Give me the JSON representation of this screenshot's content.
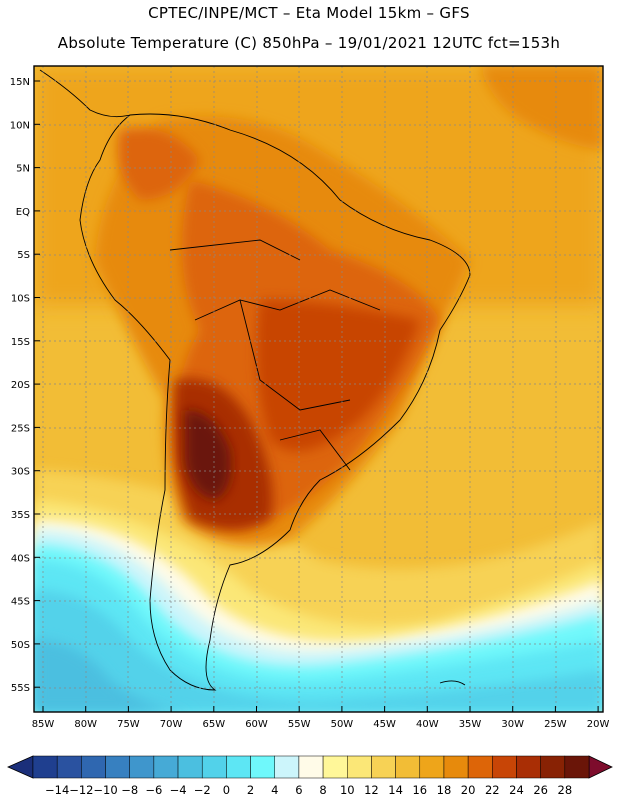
{
  "header": {
    "title_line1": "CPTEC/INPE/MCT –  Eta Model 15km – GFS",
    "title_line2": "Absolute Temperature (C) 850hPa – 19/01/2021 12UTC fct=153h"
  },
  "map": {
    "lat_labels": [
      "15N",
      "10N",
      "5N",
      "EQ",
      "5S",
      "10S",
      "15S",
      "20S",
      "25S",
      "30S",
      "35S",
      "40S",
      "45S",
      "50S",
      "55S"
    ],
    "lon_labels": [
      "85W",
      "80W",
      "75W",
      "70W",
      "65W",
      "60W",
      "55W",
      "50W",
      "45W",
      "40W",
      "35W",
      "30W",
      "25W",
      "20W"
    ]
  },
  "colorbar": {
    "labels": [
      "-14",
      "-12",
      "-10",
      "-8",
      "-6",
      "-4",
      "-2",
      "0",
      "2",
      "4",
      "6",
      "8",
      "10",
      "12",
      "14",
      "16",
      "18",
      "20",
      "22",
      "24",
      "26",
      "28"
    ],
    "colors": [
      "#1f3f8f",
      "#2a52a0",
      "#2f67b0",
      "#3780c0",
      "#3f96cc",
      "#46aad6",
      "#4bbfe0",
      "#52d2ea",
      "#5de6f4",
      "#6ff8fb",
      "#ccf5fb",
      "#fffbe8",
      "#fff799",
      "#fbe777",
      "#f7d255",
      "#f2bd36",
      "#eea51a",
      "#e78a0c",
      "#dd6508",
      "#c84506",
      "#a92e05",
      "#882204",
      "#6a1508"
    ],
    "low_arrow": "#1b2f7a",
    "high_arrow": "#7d0c2c"
  }
}
